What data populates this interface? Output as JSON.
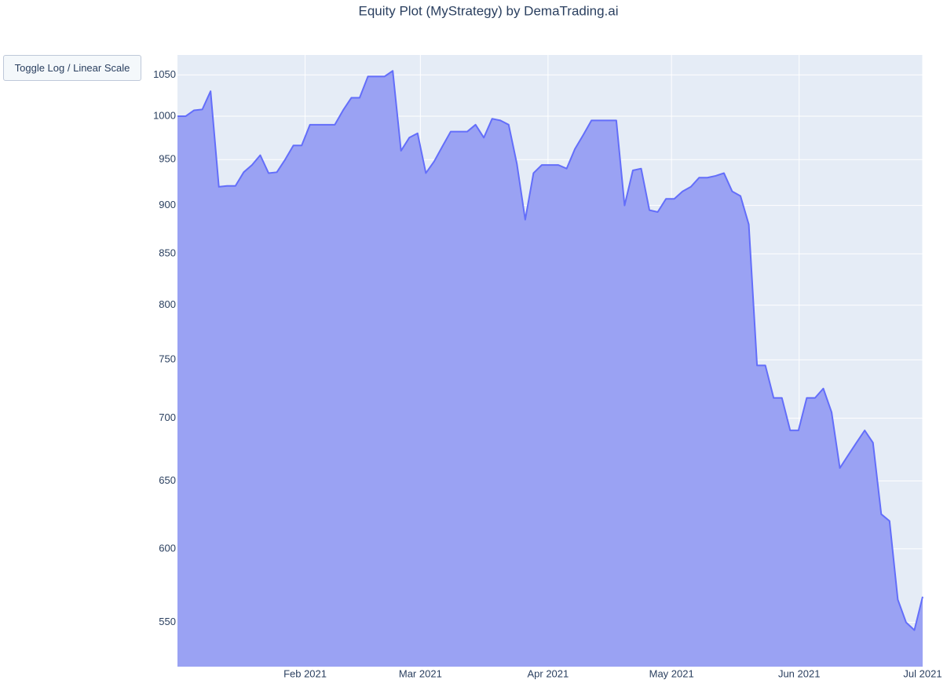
{
  "chart_data": {
    "type": "area",
    "title": "Equity Plot (MyStrategy) by DemaTrading.ai",
    "button": "Toggle Log / Linear Scale",
    "log_scale": true,
    "grid": true,
    "color": "#636efa",
    "fill_color": "#9aa2f3",
    "background": "#e5ecf6",
    "xlim": [
      "2021-01",
      "2021-07"
    ],
    "xticks": [
      {
        "value": "2021-02",
        "label": "Feb 2021"
      },
      {
        "value": "2021-03",
        "label": "Mar 2021"
      },
      {
        "value": "2021-04",
        "label": "Apr 2021"
      },
      {
        "value": "2021-05",
        "label": "May 2021"
      },
      {
        "value": "2021-06",
        "label": "Jun 2021"
      },
      {
        "value": "2021-07",
        "label": "Jul 2021"
      }
    ],
    "ylim": [
      522,
      1075
    ],
    "yticks": [
      550,
      600,
      650,
      700,
      750,
      800,
      850,
      900,
      950,
      1000,
      1050
    ],
    "values": [
      1000,
      1000,
      1007,
      1008,
      1030,
      920,
      921,
      921,
      936,
      944,
      955,
      935,
      936,
      950,
      966,
      966,
      990,
      990,
      990,
      990,
      1007,
      1022,
      1022,
      1048,
      1048,
      1048,
      1055,
      960,
      975,
      980,
      935,
      948,
      965,
      982,
      982,
      982,
      990,
      975,
      997,
      995,
      990,
      945,
      885,
      935,
      944,
      944,
      944,
      940,
      962,
      978,
      995,
      995,
      995,
      995,
      900,
      938,
      940,
      895,
      893,
      907,
      907,
      915,
      920,
      930,
      930,
      932,
      935,
      915,
      910,
      880,
      745,
      745,
      717,
      717,
      690,
      690,
      717,
      717,
      725,
      705,
      660,
      670,
      680,
      690,
      680,
      625,
      620,
      565,
      550,
      545,
      567
    ]
  }
}
